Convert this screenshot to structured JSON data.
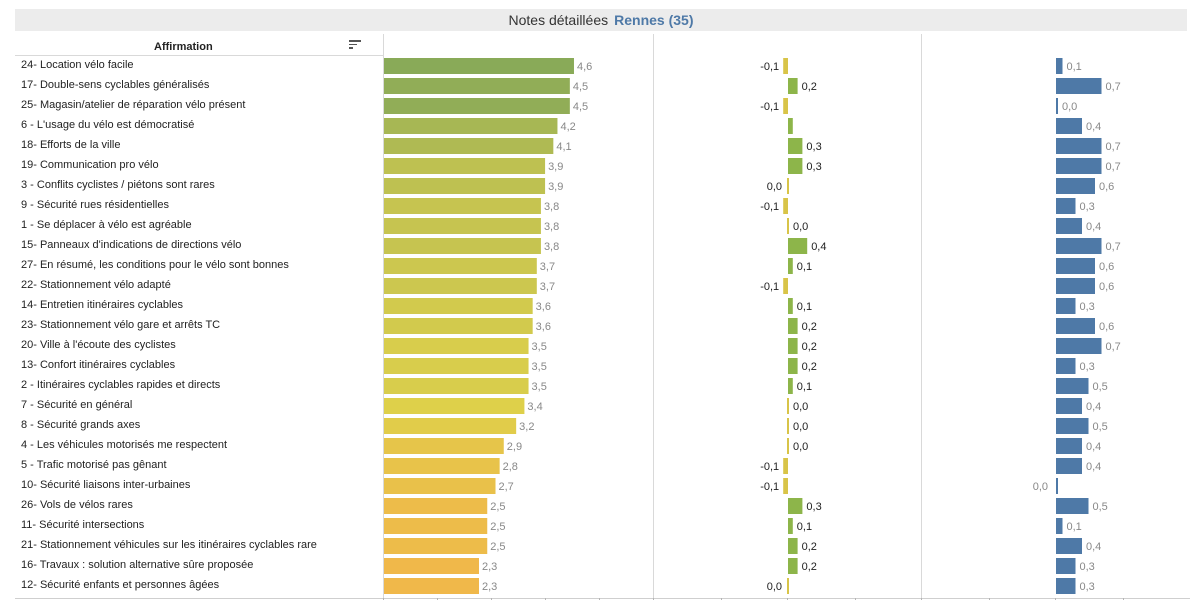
{
  "header": {
    "title": "Notes détaillées",
    "city": "Rennes (35)"
  },
  "table_header": {
    "column_label": "Affirmation"
  },
  "colors": {
    "positive_delta": "#8db54a",
    "negative_delta": "#d8c448",
    "panel3": "#4e79a7",
    "label_gray": "#888888"
  },
  "chart_data": {
    "type": "bar",
    "categories": [
      "24- Location vélo facile",
      "17- Double-sens cyclables généralisés",
      "25- Magasin/atelier de réparation vélo présent",
      "6 - L'usage du vélo est démocratisé",
      "18- Efforts de la ville",
      "19- Communication pro vélo",
      "3 - Conflits cyclistes / piétons sont rares",
      "9 - Sécurité rues résidentielles",
      "1 - Se déplacer à vélo est agréable",
      "15- Panneaux d'indications de directions vélo",
      "27- En résumé, les conditions pour le vélo sont bonnes",
      "22- Stationnement vélo adapté",
      "14- Entretien itinéraires cyclables",
      "23- Stationnement vélo gare et arrêts TC",
      "20- Ville à l'écoute des cyclistes",
      "13- Confort itinéraires cyclables",
      "2 - Itinéraires cyclables rapides et directs",
      "7 - Sécurité en général",
      "8 - Sécurité grands axes",
      "4 - Les véhicules motorisés me respectent",
      "5 - Trafic motorisé pas gênant",
      "10- Sécurité liaisons inter-urbaines",
      "26- Vols de vélos rares",
      "11- Sécurité intersections",
      "21- Stationnement véhicules sur les itinéraires cyclables rare",
      "16- Travaux : solution alternative sûre proposée",
      "12- Sécurité enfants et personnes âgées"
    ],
    "series": [
      {
        "values": [
          4.6,
          4.5,
          4.5,
          4.2,
          4.1,
          3.9,
          3.9,
          3.8,
          3.8,
          3.8,
          3.7,
          3.7,
          3.6,
          3.6,
          3.5,
          3.5,
          3.5,
          3.4,
          3.2,
          2.9,
          2.8,
          2.7,
          2.5,
          2.5,
          2.5,
          2.3,
          2.3
        ],
        "labels": [
          "4,6",
          "4,5",
          "4,5",
          "4,2",
          "4,1",
          "3,9",
          "3,9",
          "3,8",
          "3,8",
          "3,8",
          "3,7",
          "3,7",
          "3,6",
          "3,6",
          "3,5",
          "3,5",
          "3,5",
          "3,4",
          "3,2",
          "2,9",
          "2,8",
          "2,7",
          "2,5",
          "2,5",
          "2,5",
          "2,3",
          "2,3"
        ]
      },
      {
        "values": [
          -0.1,
          0.2,
          -0.1,
          0.1,
          0.3,
          0.3,
          0.0,
          -0.1,
          0.0,
          0.4,
          0.1,
          -0.1,
          0.1,
          0.2,
          0.2,
          0.2,
          0.1,
          0.0,
          0.0,
          0.0,
          -0.1,
          -0.1,
          0.3,
          0.1,
          0.2,
          0.2,
          0.0
        ],
        "labels": [
          "-0,1",
          "0,2",
          "-0,1",
          "",
          "0,3",
          "0,3",
          "0,0",
          "-0,1",
          "0,0",
          "0,4",
          "0,1",
          "-0,1",
          "0,1",
          "0,2",
          "0,2",
          "0,2",
          "0,1",
          "0,0",
          "0,0",
          "0,0",
          "-0,1",
          "-0,1",
          "0,3",
          "0,1",
          "0,2",
          "0,2",
          "0,0"
        ]
      },
      {
        "values": [
          0.1,
          0.7,
          0.0,
          0.4,
          0.7,
          0.7,
          0.6,
          0.3,
          0.4,
          0.7,
          0.6,
          0.6,
          0.3,
          0.6,
          0.7,
          0.3,
          0.5,
          0.4,
          0.5,
          0.4,
          0.4,
          0.0,
          0.5,
          0.1,
          0.4,
          0.3,
          0.3
        ],
        "labels": [
          "0,1",
          "0,7",
          "0,0",
          "0,4",
          "0,7",
          "0,7",
          "0,6",
          "0,3",
          "0,4",
          "0,7",
          "0,6",
          "0,6",
          "0,3",
          "0,6",
          "0,7",
          "0,3",
          "0,5",
          "0,4",
          "0,5",
          "0,4",
          "0,4",
          "0,0",
          "0,5",
          "0,1",
          "0,4",
          "0,3",
          "0,3"
        ]
      }
    ],
    "grid": true
  }
}
